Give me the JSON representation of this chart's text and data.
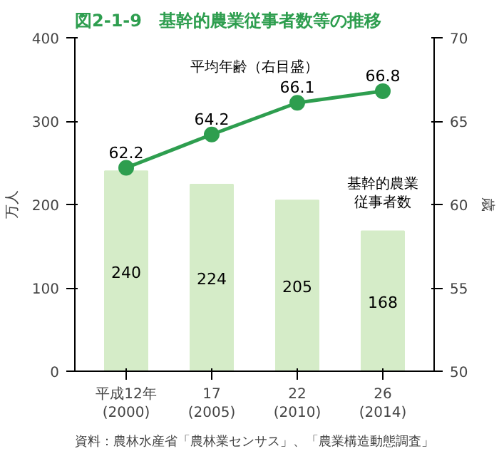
{
  "chart_data": {
    "type": "bar",
    "title": "図2-1-9　基幹的農業従事者数等の推移",
    "ylabel": "万人",
    "y2label": "歳",
    "categories": [
      "平成12年\n(2000)",
      "17\n(2005)",
      "22\n(2010)",
      "26\n(2014)"
    ],
    "series": [
      {
        "name": "基幹的農業従事者数",
        "color": "#d5ecc8",
        "values": [
          240,
          224,
          205,
          168
        ]
      },
      {
        "name": "平均年齢（右目盛）",
        "type": "line",
        "axis": "y2",
        "color": "#2e9e4f",
        "marker": "circle",
        "values": [
          62.2,
          64.2,
          66.1,
          66.8
        ]
      }
    ],
    "ylim": [
      0,
      400
    ],
    "yticks": [
      0,
      100,
      200,
      300,
      400
    ],
    "y2lim": [
      50,
      70
    ],
    "y2ticks": [
      50,
      55,
      60,
      65,
      70
    ],
    "data_labels": true,
    "grid": false,
    "annotations": [
      "資料：農林水産省「農林業センサス」、「農業構造動態調査」"
    ]
  }
}
